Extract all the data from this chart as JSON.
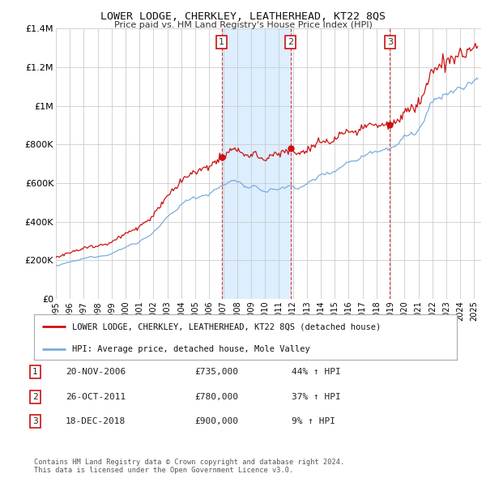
{
  "title": "LOWER LODGE, CHERKLEY, LEATHERHEAD, KT22 8QS",
  "subtitle": "Price paid vs. HM Land Registry's House Price Index (HPI)",
  "ylim": [
    0,
    1400000
  ],
  "yticks": [
    0,
    200000,
    400000,
    600000,
    800000,
    1000000,
    1200000,
    1400000
  ],
  "ytick_labels": [
    "£0",
    "£200K",
    "£400K",
    "£600K",
    "£800K",
    "£1M",
    "£1.2M",
    "£1.4M"
  ],
  "xlim_start": 1995.0,
  "xlim_end": 2025.5,
  "hpi_color": "#7aaddd",
  "price_color": "#cc1111",
  "marker_color": "#cc1111",
  "sale1_x": 2006.896,
  "sale1_y": 735000,
  "sale1_label": "1",
  "sale2_x": 2011.819,
  "sale2_y": 780000,
  "sale2_label": "2",
  "sale3_x": 2018.963,
  "sale3_y": 900000,
  "sale3_label": "3",
  "legend_line1": "LOWER LODGE, CHERKLEY, LEATHERHEAD, KT22 8QS (detached house)",
  "legend_line2": "HPI: Average price, detached house, Mole Valley",
  "table_rows": [
    {
      "num": "1",
      "date": "20-NOV-2006",
      "price": "£735,000",
      "pct": "44% ↑ HPI"
    },
    {
      "num": "2",
      "date": "26-OCT-2011",
      "price": "£780,000",
      "pct": "37% ↑ HPI"
    },
    {
      "num": "3",
      "date": "18-DEC-2018",
      "price": "£900,000",
      "pct": "9% ↑ HPI"
    }
  ],
  "footer": "Contains HM Land Registry data © Crown copyright and database right 2024.\nThis data is licensed under the Open Government Licence v3.0.",
  "background_color": "#ffffff",
  "grid_color": "#cccccc",
  "shade_color": "#ddeeff"
}
